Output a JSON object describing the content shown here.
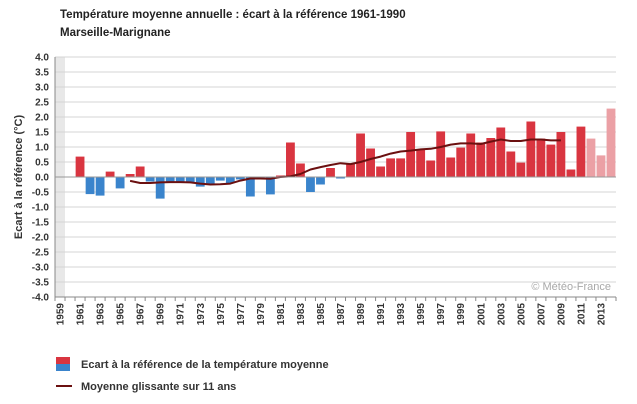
{
  "chart_data": {
    "type": "bar",
    "title": "Température moyenne annuelle : écart à la référence 1961-1990",
    "subtitle": "Marseille-Marignane",
    "ylabel": "Ecart à la référence (°C)",
    "xlabel": "",
    "ylim": [
      -4.0,
      4.0
    ],
    "y_ticks": [
      "4.0",
      "3.5",
      "3.0",
      "2.5",
      "2.0",
      "1.5",
      "1.0",
      "0.5",
      "0.0",
      "-0.5",
      "-1.0",
      "-1.5",
      "-2.0",
      "-2.5",
      "-3.0",
      "-3.5",
      "-4.0"
    ],
    "x_tick_labels": [
      "1959",
      "1961",
      "1963",
      "1965",
      "1967",
      "1969",
      "1971",
      "1973",
      "1975",
      "1977",
      "1979",
      "1981",
      "1983",
      "1985",
      "1987",
      "1989",
      "1991",
      "1993",
      "1995",
      "1997",
      "1999",
      "2001",
      "2003",
      "2005",
      "2007",
      "2009",
      "2011",
      "2013"
    ],
    "missing_years": [
      1959
    ],
    "years": [
      1960,
      1961,
      1962,
      1963,
      1964,
      1965,
      1966,
      1967,
      1968,
      1969,
      1970,
      1971,
      1972,
      1973,
      1974,
      1975,
      1976,
      1977,
      1978,
      1979,
      1980,
      1981,
      1982,
      1983,
      1984,
      1985,
      1986,
      1987,
      1988,
      1989,
      1990,
      1991,
      1992,
      1993,
      1994,
      1995,
      1996,
      1997,
      1998,
      1999,
      2000,
      2001,
      2002,
      2003,
      2004,
      2005,
      2006,
      2007,
      2008,
      2009,
      2010,
      2011,
      2012,
      2013,
      2014
    ],
    "values": [
      null,
      0.68,
      -0.57,
      -0.62,
      0.18,
      -0.38,
      0.1,
      0.35,
      -0.15,
      -0.72,
      -0.15,
      -0.2,
      -0.2,
      -0.32,
      -0.22,
      -0.12,
      -0.2,
      -0.08,
      -0.65,
      -0.03,
      -0.58,
      0.05,
      1.15,
      0.45,
      -0.5,
      -0.25,
      0.3,
      -0.05,
      0.45,
      1.45,
      0.95,
      0.35,
      0.62,
      0.62,
      1.5,
      0.9,
      0.55,
      1.52,
      0.65,
      0.98,
      1.45,
      1.15,
      1.3,
      1.65,
      0.85,
      0.48,
      1.85,
      1.28,
      1.08,
      1.5,
      0.25,
      1.68,
      1.28,
      0.72,
      2.28
    ],
    "provisional_years": [
      2012,
      2013,
      2014
    ],
    "moving_average": {
      "years": [
        1966,
        1967,
        1968,
        1969,
        1970,
        1971,
        1972,
        1973,
        1974,
        1975,
        1976,
        1977,
        1978,
        1979,
        1980,
        1981,
        1982,
        1983,
        1984,
        1985,
        1986,
        1987,
        1988,
        1989,
        1990,
        1991,
        1992,
        1993,
        1994,
        1995,
        1996,
        1997,
        1998,
        1999,
        2000,
        2001,
        2002,
        2003,
        2004,
        2005,
        2006,
        2007,
        2008,
        2009
      ],
      "values": [
        -0.13,
        -0.2,
        -0.2,
        -0.18,
        -0.17,
        -0.17,
        -0.18,
        -0.22,
        -0.25,
        -0.24,
        -0.22,
        -0.12,
        -0.05,
        -0.05,
        -0.06,
        0.0,
        0.02,
        0.1,
        0.25,
        0.33,
        0.4,
        0.46,
        0.43,
        0.5,
        0.6,
        0.68,
        0.78,
        0.85,
        0.88,
        0.92,
        0.94,
        1.0,
        1.08,
        1.12,
        1.12,
        1.1,
        1.18,
        1.25,
        1.2,
        1.2,
        1.25,
        1.25,
        1.22,
        1.22
      ]
    },
    "colors": {
      "positive": "#d93540",
      "negative": "#3a84cc",
      "provisional": "#eba0a5",
      "line": "#6b1010",
      "grid": "#d4d4d4",
      "missing": "#e8e8e8"
    },
    "grid": true,
    "legend": {
      "placement": "bottom-left",
      "entries": [
        {
          "label": "Ecart à la référence de la température moyenne",
          "symbol": "bar-red-blue"
        },
        {
          "label": "Moyenne glissante sur 11 ans",
          "symbol": "line"
        }
      ]
    },
    "credit": "© Météo-France"
  }
}
